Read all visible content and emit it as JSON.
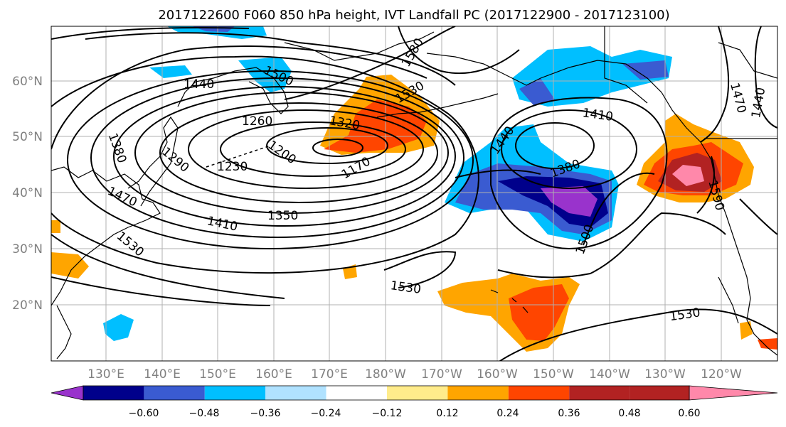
{
  "title": "2017122600 F060 850 hPa height, IVT Landfall PC (2017122900 - 2017123100)",
  "map": {
    "lat_labels": [
      "60°N",
      "50°N",
      "40°N",
      "30°N",
      "20°N"
    ],
    "lon_labels": [
      "130°E",
      "140°E",
      "150°E",
      "160°E",
      "170°E",
      "180°W",
      "170°W",
      "160°W",
      "150°W",
      "140°W",
      "130°W",
      "120°W"
    ],
    "contour_labels": [
      {
        "text": "1440",
        "id": "c1440a"
      },
      {
        "text": "1500",
        "id": "c1500a"
      },
      {
        "text": "1530",
        "id": "c1530a"
      },
      {
        "text": "1580",
        "id": "c1580a"
      },
      {
        "text": "1260",
        "id": "c1260"
      },
      {
        "text": "1320",
        "id": "c1320"
      },
      {
        "text": "1200",
        "id": "c1200"
      },
      {
        "text": "1170",
        "id": "c1170"
      },
      {
        "text": "1230",
        "id": "c1230"
      },
      {
        "text": "1290",
        "id": "c1290"
      },
      {
        "text": "1380",
        "id": "c1380a"
      },
      {
        "text": "1470",
        "id": "c1470a"
      },
      {
        "text": "1530",
        "id": "c1530b"
      },
      {
        "text": "1410",
        "id": "c1410a"
      },
      {
        "text": "1350",
        "id": "c1350"
      },
      {
        "text": "1410",
        "id": "c1410b"
      },
      {
        "text": "1440",
        "id": "c1440b"
      },
      {
        "text": "1380",
        "id": "c1380b"
      },
      {
        "text": "1500",
        "id": "c1500b"
      },
      {
        "text": "1530",
        "id": "c1530c"
      },
      {
        "text": "1530",
        "id": "c1530d"
      },
      {
        "text": "1590",
        "id": "c1590"
      },
      {
        "text": "1470",
        "id": "c1470b"
      },
      {
        "text": "1440",
        "id": "c1440c"
      }
    ]
  },
  "colorbar": {
    "colors": [
      "#9933cc",
      "#00008b",
      "#3a5bd1",
      "#00bfff",
      "#b0e2ff",
      "#ffffff",
      "#ffec8b",
      "#ffa500",
      "#ff4500",
      "#b22222",
      "#ff88aa"
    ],
    "ticks": [
      "−0.60",
      "−0.48",
      "−0.36",
      "−0.24",
      "−0.12",
      "0.12",
      "0.24",
      "0.36",
      "0.48",
      "0.60"
    ]
  }
}
